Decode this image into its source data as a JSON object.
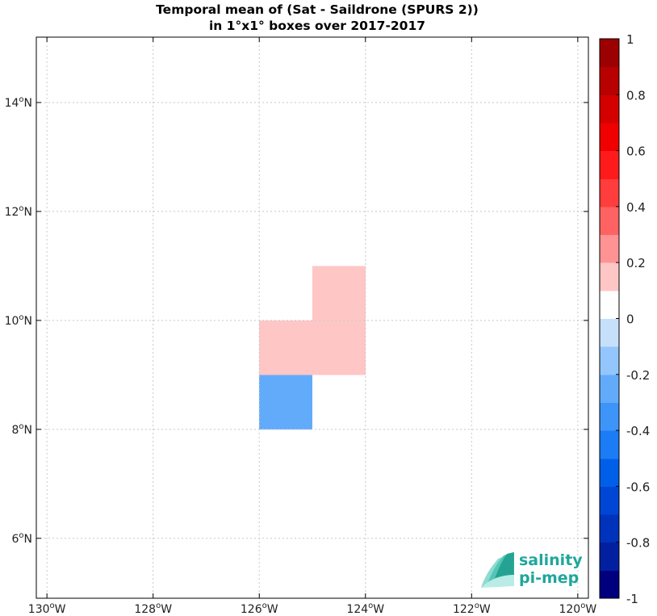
{
  "chart_data": {
    "type": "heatmap",
    "title_lines": [
      "Temporal mean of (Sat - Saildrone (SPURS 2))",
      "in 1°x1° boxes over 2017-2017"
    ],
    "xlabel": "",
    "ylabel": "",
    "xlim": [
      -130.2,
      -119.8
    ],
    "ylim": [
      4.9,
      15.2
    ],
    "x_ticks": [
      {
        "value": -130,
        "label": "130°W"
      },
      {
        "value": -128,
        "label": "128°W"
      },
      {
        "value": -126,
        "label": "126°W"
      },
      {
        "value": -124,
        "label": "124°W"
      },
      {
        "value": -122,
        "label": "122°W"
      },
      {
        "value": -120,
        "label": "120°W"
      }
    ],
    "y_ticks": [
      {
        "value": 6,
        "label": "6°N"
      },
      {
        "value": 8,
        "label": "8°N"
      },
      {
        "value": 10,
        "label": "10°N"
      },
      {
        "value": 12,
        "label": "12°N"
      },
      {
        "value": 14,
        "label": "14°N"
      }
    ],
    "grid": true,
    "cells": [
      {
        "lon_min": -126,
        "lon_max": -125,
        "lat_min": 9,
        "lat_max": 10,
        "value": 0.15
      },
      {
        "lon_min": -125,
        "lon_max": -124,
        "lat_min": 9,
        "lat_max": 10,
        "value": 0.15
      },
      {
        "lon_min": -125,
        "lon_max": -124,
        "lat_min": 10,
        "lat_max": 11,
        "value": 0.15
      },
      {
        "lon_min": -126,
        "lon_max": -125,
        "lat_min": 8,
        "lat_max": 9,
        "value": -0.25
      }
    ],
    "colorbar": {
      "placement": "right",
      "min": -1,
      "max": 1,
      "step": 0.1,
      "tick_labels": [
        {
          "value": 1,
          "label": "1"
        },
        {
          "value": 0.8,
          "label": "0.8"
        },
        {
          "value": 0.6,
          "label": "0.6"
        },
        {
          "value": 0.4,
          "label": "0.4"
        },
        {
          "value": 0.2,
          "label": "0.2"
        },
        {
          "value": 0,
          "label": "0"
        },
        {
          "value": -0.2,
          "label": "-0.2"
        },
        {
          "value": -0.4,
          "label": "-0.4"
        },
        {
          "value": -0.6,
          "label": "-0.6"
        },
        {
          "value": -0.8,
          "label": "-0.8"
        },
        {
          "value": -1,
          "label": "-1"
        }
      ],
      "colors_low_to_high": [
        "#00007f",
        "#00209f",
        "#0033bb",
        "#0046d4",
        "#005fe8",
        "#1b7cf5",
        "#3d95fa",
        "#62abfb",
        "#93c6fd",
        "#c6e0fc",
        "#ffffff",
        "#ffc6c6",
        "#ff9393",
        "#ff6262",
        "#ff3d3d",
        "#ff1b1b",
        "#f00000",
        "#d40000",
        "#b80000",
        "#9c0000"
      ]
    },
    "logo": {
      "line1": "salinity",
      "line2": "pi-mep",
      "color": "#1fa79a"
    }
  }
}
